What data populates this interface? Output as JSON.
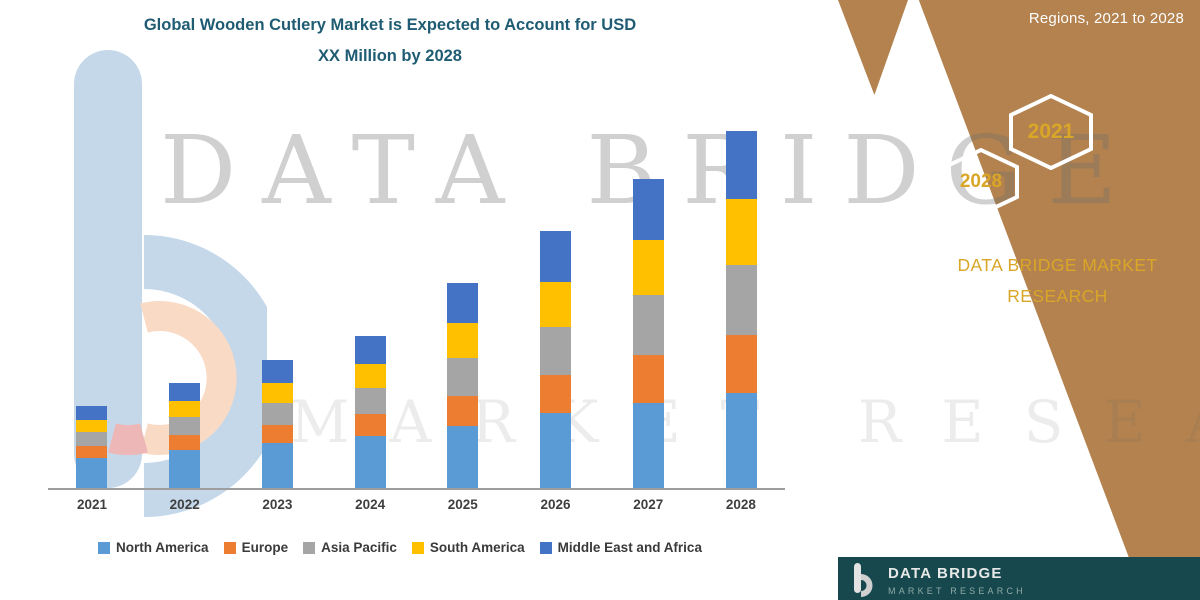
{
  "title": {
    "line1": "Global Wooden Cutlery Market is Expected to Account for USD",
    "line2": "XX Million by 2028",
    "color": "#1F5C73"
  },
  "chart_data": {
    "type": "bar",
    "stacked": true,
    "title": "Global Wooden Cutlery Market is Expected to Account for USD XX Million by 2028",
    "categories": [
      "2021",
      "2022",
      "2023",
      "2024",
      "2025",
      "2026",
      "2027",
      "2028"
    ],
    "series": [
      {
        "name": "North America",
        "color": "#5B9BD5",
        "values": [
          30,
          38,
          45,
          52,
          62,
          75,
          85,
          95
        ]
      },
      {
        "name": "Europe",
        "color": "#ED7D31",
        "values": [
          12,
          15,
          18,
          22,
          30,
          38,
          48,
          58
        ]
      },
      {
        "name": "Asia Pacific",
        "color": "#A5A5A5",
        "values": [
          14,
          18,
          22,
          26,
          38,
          48,
          60,
          70
        ]
      },
      {
        "name": "South America",
        "color": "#FFC000",
        "values": [
          12,
          16,
          20,
          24,
          35,
          45,
          55,
          65
        ]
      },
      {
        "name": "Middle East and Africa",
        "color": "#4472C4",
        "values": [
          14,
          18,
          23,
          28,
          40,
          50,
          60,
          68
        ]
      }
    ],
    "xlabel": "",
    "ylabel": "",
    "ylim": [
      0,
      380
    ],
    "grid": false,
    "legend_position": "bottom",
    "values_are_estimates": true
  },
  "watermark": {
    "brand": "DATA BRIDGE",
    "sub": "MARKET RESEARCH"
  },
  "side_panel": {
    "heading": "Regions, 2021 to 2028",
    "hexagon_left": "2028",
    "hexagon_right": "2021",
    "brand_line1": "DATA BRIDGE MARKET",
    "brand_line2": "RESEARCH",
    "panel_color": "#B3824F",
    "accent_color": "#D9A627"
  },
  "footer": {
    "brand": "DATA BRIDGE",
    "sub": "MARKET RESEARCH",
    "background": "#16484E"
  }
}
